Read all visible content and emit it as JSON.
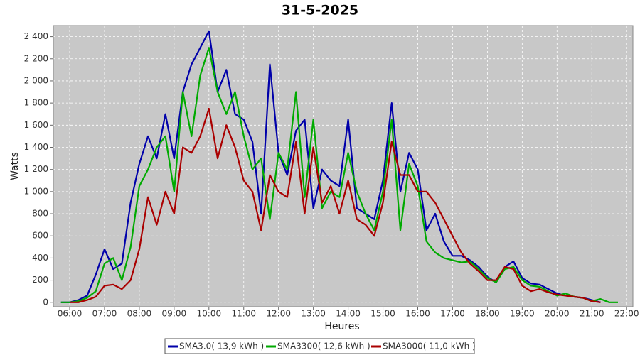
{
  "chart_data": {
    "type": "line",
    "title": "31-5-2025",
    "x_label": "Heures",
    "y_label": "Watts",
    "xlim": [
      5.53,
      22.18
    ],
    "ylim": [
      -40,
      2500
    ],
    "grid": true,
    "legend": "bottom",
    "xticks": [
      {
        "value": 6,
        "label": "06:00"
      },
      {
        "value": 7,
        "label": "07:00"
      },
      {
        "value": 8,
        "label": "08:00"
      },
      {
        "value": 9,
        "label": "09:00"
      },
      {
        "value": 10,
        "label": "10:00"
      },
      {
        "value": 11,
        "label": "11:00"
      },
      {
        "value": 12,
        "label": "12:00"
      },
      {
        "value": 13,
        "label": "13:00"
      },
      {
        "value": 14,
        "label": "14:00"
      },
      {
        "value": 15,
        "label": "15:00"
      },
      {
        "value": 16,
        "label": "16:00"
      },
      {
        "value": 17,
        "label": "17:00"
      },
      {
        "value": 18,
        "label": "18:00"
      },
      {
        "value": 19,
        "label": "19:00"
      },
      {
        "value": 20,
        "label": "20:00"
      },
      {
        "value": 21,
        "label": "21:00"
      },
      {
        "value": 22,
        "label": "22:00"
      }
    ],
    "yticks": [
      0,
      200,
      400,
      600,
      800,
      {
        "value": 1000,
        "label": "1 000"
      },
      {
        "value": 1200,
        "label": "1 200"
      },
      {
        "value": 1400,
        "label": "1 400"
      },
      {
        "value": 1600,
        "label": "1 600"
      },
      {
        "value": 1800,
        "label": "1 800"
      },
      {
        "value": 2000,
        "label": "2 000"
      },
      {
        "value": 2200,
        "label": "2 200"
      },
      {
        "value": 2400,
        "label": "2 400"
      }
    ],
    "x": [
      5.75,
      6,
      6.25,
      6.5,
      6.75,
      7,
      7.25,
      7.5,
      7.75,
      8,
      8.25,
      8.5,
      8.75,
      9,
      9.25,
      9.5,
      9.75,
      10,
      10.25,
      10.5,
      10.75,
      11,
      11.25,
      11.5,
      11.75,
      12,
      12.25,
      12.5,
      12.75,
      13,
      13.25,
      13.5,
      13.75,
      14,
      14.25,
      14.5,
      14.75,
      15,
      15.25,
      15.5,
      15.75,
      16,
      16.25,
      16.5,
      16.75,
      17,
      17.25,
      17.5,
      17.75,
      18,
      18.25,
      18.5,
      18.75,
      19,
      19.25,
      19.5,
      19.75,
      20,
      20.25,
      20.5,
      20.75,
      21,
      21.25,
      21.5,
      21.75
    ],
    "series": [
      {
        "name": "SMA3.0( 13,9 kWh )",
        "color": "#0000aa",
        "values": [
          0,
          0,
          20,
          60,
          250,
          480,
          300,
          350,
          900,
          1250,
          1500,
          1300,
          1700,
          1300,
          1900,
          2150,
          2300,
          2450,
          1900,
          2100,
          1700,
          1650,
          1450,
          800,
          2150,
          1350,
          1150,
          1550,
          1650,
          850,
          1200,
          1100,
          1050,
          1650,
          850,
          800,
          750,
          1100,
          1800,
          1000,
          1350,
          1200,
          650,
          800,
          550,
          420,
          420,
          380,
          320,
          230,
          180,
          320,
          370,
          220,
          170,
          160,
          120,
          80,
          60,
          50,
          40,
          20,
          0,
          null,
          null
        ]
      },
      {
        "name": "SMA3300( 12,6 kWh )",
        "color": "#00aa00",
        "values": [
          0,
          0,
          10,
          40,
          100,
          350,
          400,
          200,
          500,
          1050,
          1200,
          1400,
          1500,
          1000,
          1900,
          1500,
          2050,
          2300,
          1900,
          1700,
          1900,
          1500,
          1200,
          1300,
          750,
          1350,
          1200,
          1900,
          950,
          1650,
          850,
          1000,
          950,
          1350,
          1000,
          800,
          650,
          1000,
          1650,
          650,
          1250,
          1050,
          550,
          450,
          400,
          380,
          360,
          370,
          300,
          220,
          180,
          300,
          320,
          200,
          150,
          140,
          100,
          60,
          80,
          50,
          40,
          10,
          30,
          0,
          0
        ]
      },
      {
        "name": "SMA3000( 11,0 kWh )",
        "color": "#aa0000",
        "values": [
          null,
          0,
          0,
          20,
          50,
          150,
          160,
          120,
          200,
          480,
          950,
          700,
          1000,
          800,
          1400,
          1350,
          1500,
          1750,
          1300,
          1600,
          1400,
          1100,
          1000,
          650,
          1150,
          1000,
          950,
          1450,
          800,
          1400,
          900,
          1050,
          800,
          1100,
          750,
          700,
          600,
          900,
          1450,
          1150,
          1150,
          1000,
          1000,
          900,
          750,
          600,
          450,
          350,
          280,
          200,
          200,
          320,
          300,
          150,
          100,
          120,
          90,
          70,
          60,
          50,
          40,
          10,
          0,
          null,
          null
        ]
      }
    ]
  }
}
